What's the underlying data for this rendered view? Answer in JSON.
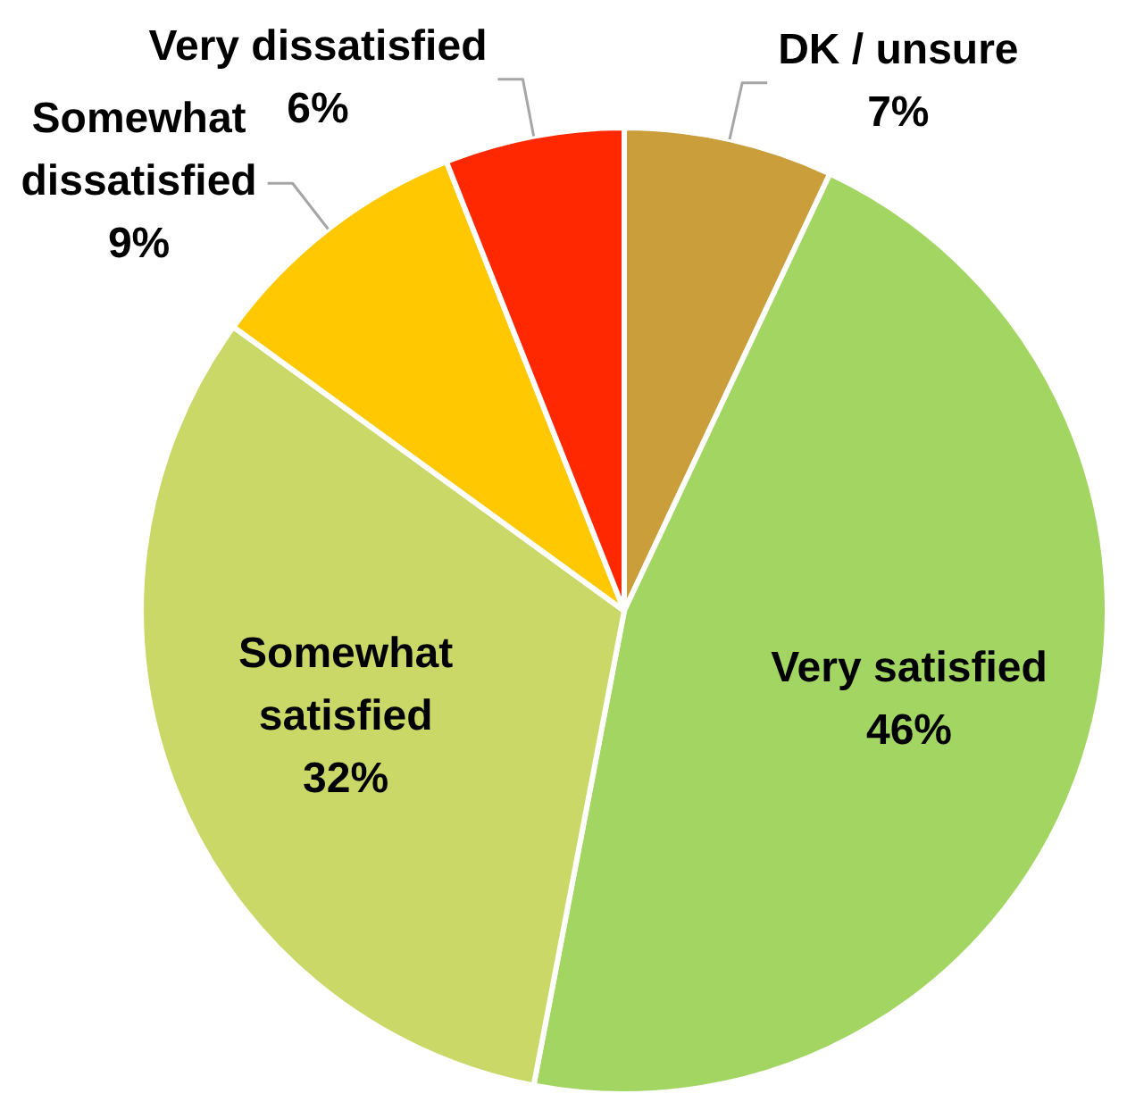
{
  "chart_data": {
    "type": "pie",
    "categories": [
      "DK / unsure",
      "Very satisfied",
      "Somewhat satisfied",
      "Somewhat dissatisfied",
      "Very dissatisfied"
    ],
    "values": [
      7,
      46,
      32,
      9,
      6
    ],
    "colors": [
      "#c99e3b",
      "#a3d563",
      "#c9d867",
      "#ffc800",
      "#ff2800"
    ],
    "value_labels": [
      "7%",
      "46%",
      "32%",
      "9%",
      "6%"
    ]
  }
}
